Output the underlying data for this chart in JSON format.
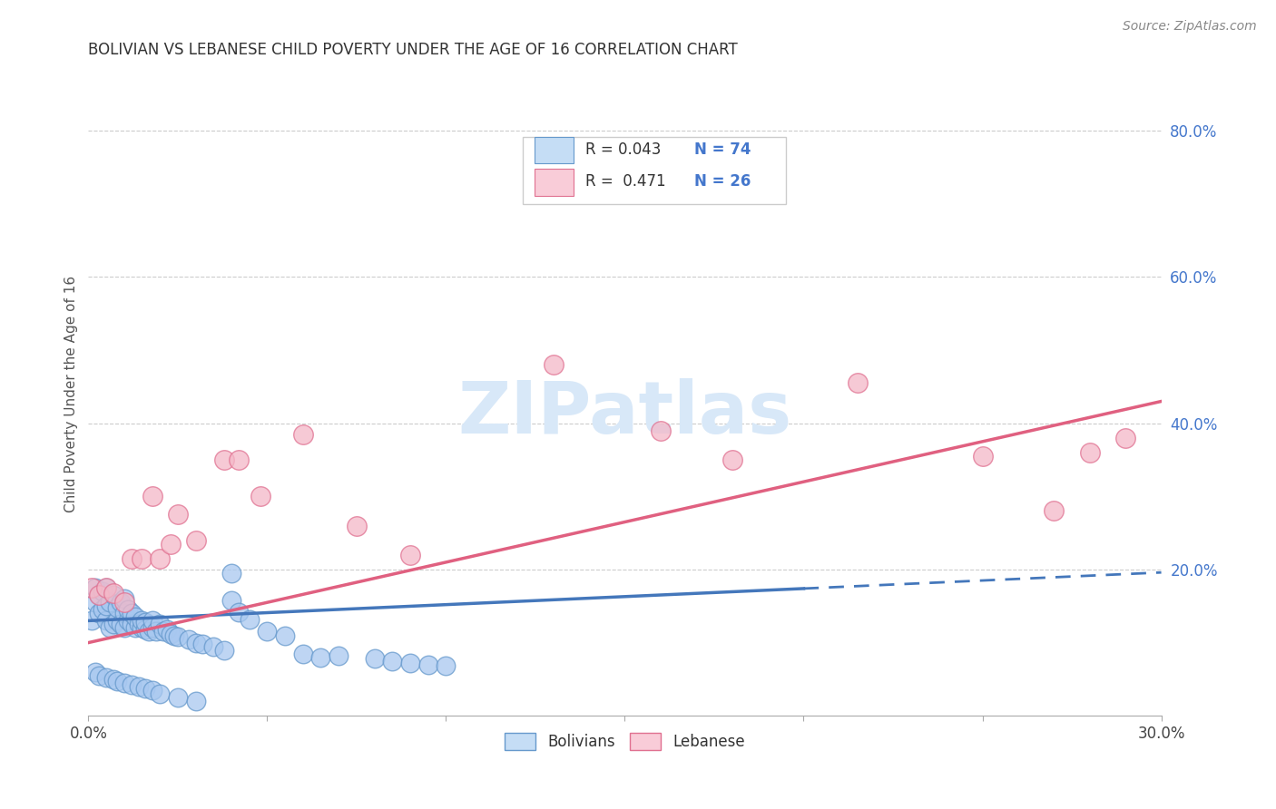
{
  "title": "BOLIVIAN VS LEBANESE CHILD POVERTY UNDER THE AGE OF 16 CORRELATION CHART",
  "source": "Source: ZipAtlas.com",
  "ylabel": "Child Poverty Under the Age of 16",
  "xlim": [
    0.0,
    0.3
  ],
  "ylim": [
    0.0,
    0.88
  ],
  "xticks": [
    0.0,
    0.05,
    0.1,
    0.15,
    0.2,
    0.25,
    0.3
  ],
  "xticklabels": [
    "0.0%",
    "",
    "",
    "",
    "",
    "",
    "30.0%"
  ],
  "yticks_right": [
    0.0,
    0.2,
    0.4,
    0.6,
    0.8
  ],
  "yticklabels_right": [
    "",
    "20.0%",
    "40.0%",
    "60.0%",
    "80.0%"
  ],
  "bolivians_color": "#a8c8f0",
  "lebanese_color": "#f4b8c8",
  "bolivians_edge": "#6699cc",
  "lebanese_edge": "#e07090",
  "legend_box_blue": "#c5ddf5",
  "legend_box_pink": "#f9ccd8",
  "R_blue": 0.043,
  "N_blue": 74,
  "R_pink": 0.471,
  "N_pink": 26,
  "blue_line_color": "#4477bb",
  "pink_line_color": "#e06080",
  "watermark_color": "#d8e8f8",
  "blue_intercept": 0.13,
  "blue_slope": 0.22,
  "pink_intercept": 0.1,
  "pink_slope": 1.1,
  "bolivians_x": [
    0.001,
    0.002,
    0.002,
    0.003,
    0.003,
    0.004,
    0.004,
    0.005,
    0.005,
    0.005,
    0.006,
    0.006,
    0.007,
    0.007,
    0.008,
    0.008,
    0.009,
    0.009,
    0.01,
    0.01,
    0.01,
    0.011,
    0.011,
    0.012,
    0.012,
    0.013,
    0.013,
    0.014,
    0.015,
    0.015,
    0.016,
    0.016,
    0.017,
    0.018,
    0.018,
    0.019,
    0.02,
    0.021,
    0.022,
    0.023,
    0.024,
    0.025,
    0.028,
    0.03,
    0.032,
    0.035,
    0.038,
    0.04,
    0.042,
    0.045,
    0.05,
    0.055,
    0.06,
    0.065,
    0.07,
    0.08,
    0.085,
    0.09,
    0.095,
    0.1,
    0.002,
    0.003,
    0.005,
    0.007,
    0.008,
    0.01,
    0.012,
    0.014,
    0.016,
    0.018,
    0.02,
    0.025,
    0.03,
    0.04
  ],
  "bolivians_y": [
    0.13,
    0.155,
    0.175,
    0.14,
    0.165,
    0.145,
    0.17,
    0.13,
    0.15,
    0.175,
    0.12,
    0.155,
    0.125,
    0.165,
    0.13,
    0.148,
    0.125,
    0.155,
    0.12,
    0.14,
    0.16,
    0.13,
    0.145,
    0.125,
    0.14,
    0.12,
    0.135,
    0.125,
    0.12,
    0.13,
    0.118,
    0.128,
    0.115,
    0.12,
    0.13,
    0.115,
    0.125,
    0.115,
    0.118,
    0.112,
    0.11,
    0.108,
    0.105,
    0.1,
    0.098,
    0.095,
    0.09,
    0.158,
    0.142,
    0.132,
    0.115,
    0.11,
    0.085,
    0.08,
    0.082,
    0.078,
    0.075,
    0.072,
    0.07,
    0.068,
    0.06,
    0.055,
    0.052,
    0.05,
    0.048,
    0.045,
    0.042,
    0.04,
    0.038,
    0.035,
    0.03,
    0.025,
    0.02,
    0.195
  ],
  "lebanese_x": [
    0.001,
    0.003,
    0.005,
    0.007,
    0.01,
    0.012,
    0.015,
    0.018,
    0.02,
    0.023,
    0.025,
    0.03,
    0.038,
    0.042,
    0.048,
    0.06,
    0.075,
    0.09,
    0.13,
    0.16,
    0.18,
    0.215,
    0.25,
    0.27,
    0.28,
    0.29
  ],
  "lebanese_y": [
    0.175,
    0.165,
    0.175,
    0.168,
    0.155,
    0.215,
    0.215,
    0.3,
    0.215,
    0.235,
    0.275,
    0.24,
    0.35,
    0.35,
    0.3,
    0.385,
    0.26,
    0.22,
    0.48,
    0.39,
    0.35,
    0.455,
    0.355,
    0.28,
    0.36,
    0.38
  ]
}
